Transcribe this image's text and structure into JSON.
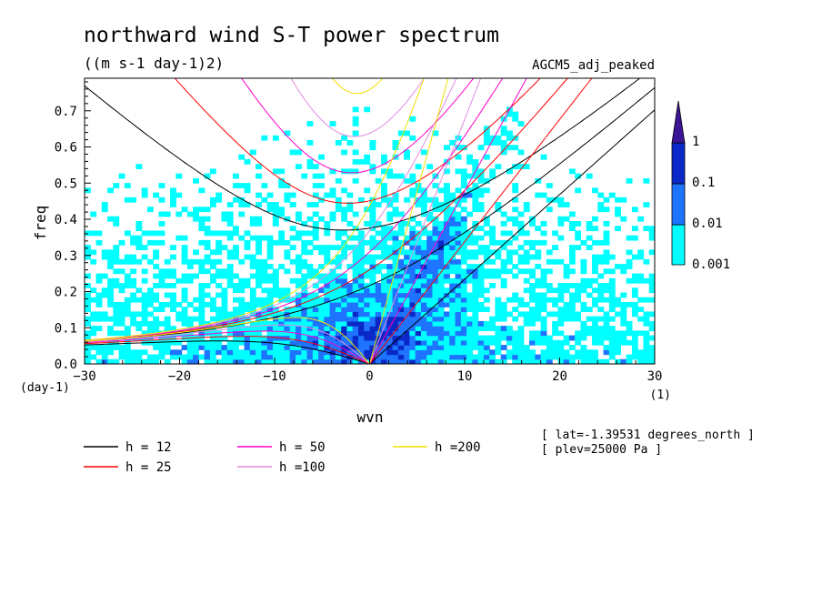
{
  "chart_data": {
    "type": "heatmap",
    "title": "northward wind S-T power spectrum",
    "subtitle": "((m s-1 day-1)2)",
    "model_label": "AGCM5_adj_peaked",
    "xlabel": "wvn",
    "ylabel": "freq",
    "x_unit": "(1)",
    "y_unit": "(day-1)",
    "xlim": [
      -30,
      30
    ],
    "ylim": [
      0,
      0.79
    ],
    "xticks": [
      "-30",
      "-20",
      "-10",
      "0",
      "10",
      "20",
      "30"
    ],
    "yticks": [
      "0.0",
      "0.1",
      "0.2",
      "0.3",
      "0.4",
      "0.5",
      "0.6",
      "0.7"
    ],
    "colorbar": {
      "levels": [
        "0.001",
        "0.01",
        "0.1",
        "1"
      ],
      "colors": [
        "#00ffff",
        "#1e73ff",
        "#0a28c8",
        "#3c1496"
      ]
    },
    "dispersion_curves": [
      {
        "label": "h = 12",
        "color": "#000000",
        "h": 12
      },
      {
        "label": "h = 25",
        "color": "#ff0000",
        "h": 25
      },
      {
        "label": "h = 50",
        "color": "#ff00c8",
        "h": 50
      },
      {
        "label": "h =100",
        "color": "#e08ce0",
        "h": 100
      },
      {
        "label": "h =200",
        "color": "#f0e000",
        "h": 200
      }
    ],
    "annotations": [
      "[ lat=-1.39531 degrees_north ]",
      "[ plev=25000 Pa ]"
    ]
  }
}
